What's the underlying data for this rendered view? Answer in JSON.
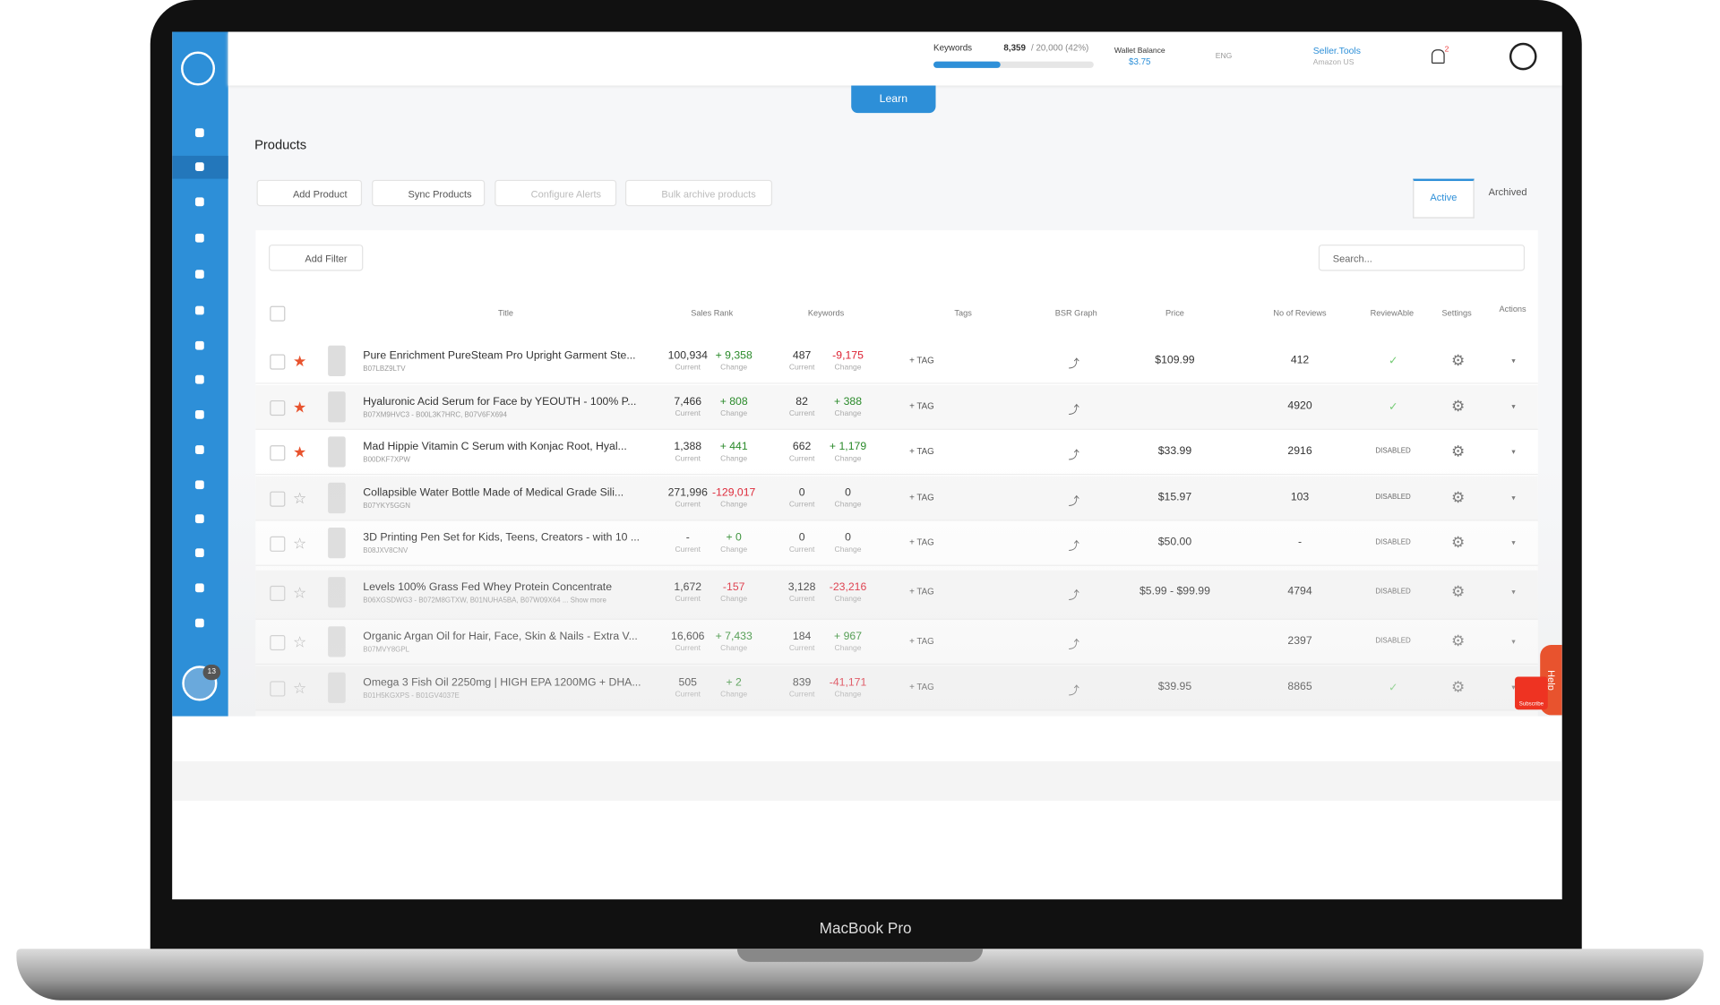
{
  "topbar": {
    "keywords_label": "Keywords",
    "keywords_used": "8,359",
    "keywords_total": "/ 20,000 (42%)",
    "wallet_label": "Wallet Balance",
    "wallet_value": "$3.75",
    "language": "ENG",
    "store_name": "Seller.Tools",
    "store_region": "Amazon US",
    "notifications": "2"
  },
  "learn_button": "Learn",
  "page_title": "Products",
  "toolbar": {
    "buttons": [
      "Add Product",
      "Sync Products",
      "Configure Alerts",
      "Bulk archive products"
    ],
    "tabs": [
      "Active",
      "Archived"
    ]
  },
  "filter": {
    "button": "Add Filter",
    "search_placeholder": "Search..."
  },
  "table": {
    "columns": [
      "Title",
      "Sales Rank",
      "Keywords",
      "Tags",
      "BSR Graph",
      "Price",
      "No of Reviews",
      "ReviewAble",
      "Settings",
      "Actions"
    ],
    "sub_labels": [
      "Current",
      "Change"
    ],
    "tag_label": "+ TAG",
    "disabled_label": "DISABLED",
    "rows": [
      {
        "title": "Pure Enrichment PureSteam Pro Upright Garment Ste...",
        "asin": "B07LBZ9LTV",
        "starred": true,
        "rank": "100,934",
        "rank_change": "+ 9,358",
        "keywords": "487",
        "keywords_change": "-9,175",
        "price": "$109.99",
        "reviews": "412",
        "reviewable": true
      },
      {
        "title": "Hyaluronic Acid Serum for Face by YEOUTH - 100% P...",
        "asin": "B07XM9HVC3 - B00L3K7HRC, B07V6FX694",
        "starred": true,
        "rank": "7,466",
        "rank_change": "+ 808",
        "keywords": "82",
        "keywords_change": "+ 388",
        "price": null,
        "reviews": "4920",
        "reviewable": true
      },
      {
        "title": "Mad Hippie Vitamin C Serum with Konjac Root, Hyal...",
        "asin": "B00DKF7XPW",
        "starred": true,
        "rank": "1,388",
        "rank_change": "+ 441",
        "keywords": "662",
        "keywords_change": "+ 1,179",
        "price": "$33.99",
        "reviews": "2916",
        "reviewable": false
      },
      {
        "title": "Collapsible Water Bottle Made of Medical Grade Sili...",
        "asin": "B07YKY5GGN",
        "starred": false,
        "rank": "271,996",
        "rank_change": "-129,017",
        "keywords": "0",
        "keywords_change": "0",
        "price": "$15.97",
        "reviews": "103",
        "reviewable": false
      },
      {
        "title": "3D Printing Pen Set for Kids, Teens, Creators - with 10 ...",
        "asin": "B08JXV8CNV",
        "starred": false,
        "rank": "-",
        "rank_change": "+ 0",
        "keywords": "0",
        "keywords_change": "0",
        "price": "$50.00",
        "reviews": "-",
        "reviewable": false
      },
      {
        "title": "Levels 100% Grass Fed Whey Protein Concentrate",
        "asin": "B06XGSDWG3 - B072M8GTXW, B01NUHA5BA, B07W09X64 ... Show more",
        "starred": false,
        "rank": "1,672",
        "rank_change": "-157",
        "keywords": "3,128",
        "keywords_change": "-23,216",
        "price": "$5.99 - $99.99",
        "reviews": "4794",
        "reviewable": false
      },
      {
        "title": "Organic Argan Oil for Hair, Face, Skin & Nails - Extra V...",
        "asin": "B07MVY8GPL",
        "starred": false,
        "rank": "16,606",
        "rank_change": "+ 7,433",
        "keywords": "184",
        "keywords_change": "+ 967",
        "price": null,
        "reviews": "2397",
        "reviewable": false
      },
      {
        "title": "Omega 3 Fish Oil 2250mg | HIGH EPA 1200MG + DHA...",
        "asin": "B01H5KGXPS - B01GV4037E",
        "starred": false,
        "rank": "505",
        "rank_change": "+ 2",
        "keywords": "839",
        "keywords_change": "-41,171",
        "price": "$39.95",
        "reviews": "8865",
        "reviewable": true
      }
    ]
  },
  "sidebar": {
    "badge": "13"
  },
  "help": {
    "tab": "Help",
    "subscribe": "Subscribe"
  },
  "device_label": "MacBook Pro"
}
